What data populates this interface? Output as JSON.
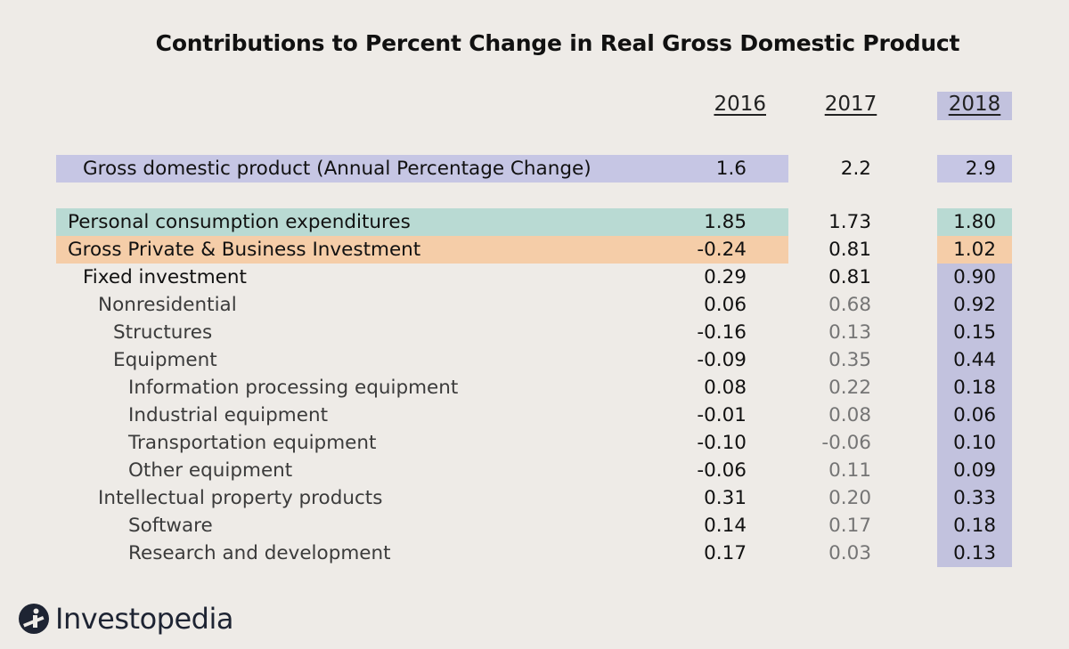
{
  "chart_data": {
    "type": "table",
    "title": "Contributions to Percent Change in Real Gross Domestic Product",
    "columns": [
      "2016",
      "2017",
      "2018"
    ],
    "rows": [
      {
        "label": "Gross domestic product (Annual Percentage Change)",
        "values": [
          "1.6",
          "2.2",
          "2.9"
        ],
        "level": 1,
        "highlight": "#c6c6e4"
      },
      {
        "label": "Personal consumption expenditures",
        "values": [
          "1.85",
          "1.73",
          "1.80"
        ],
        "level": 0,
        "highlight": "#b9dad3"
      },
      {
        "label": "Gross Private & Business Investment",
        "values": [
          "-0.24",
          "0.81",
          "1.02"
        ],
        "level": 0,
        "highlight": "#f5cda8"
      },
      {
        "label": "Fixed investment",
        "values": [
          "0.29",
          "0.81",
          "0.90"
        ],
        "level": 1
      },
      {
        "label": "Nonresidential",
        "values": [
          "0.06",
          "0.68",
          "0.92"
        ],
        "level": 2
      },
      {
        "label": "Structures",
        "values": [
          "-0.16",
          "0.13",
          "0.15"
        ],
        "level": 3
      },
      {
        "label": "Equipment",
        "values": [
          "-0.09",
          "0.35",
          "0.44"
        ],
        "level": 3
      },
      {
        "label": "Information processing equipment",
        "values": [
          "0.08",
          "0.22",
          "0.18"
        ],
        "level": 4
      },
      {
        "label": "Industrial equipment",
        "values": [
          "-0.01",
          "0.08",
          "0.06"
        ],
        "level": 4
      },
      {
        "label": "Transportation equipment",
        "values": [
          "-0.10",
          "-0.06",
          "0.10"
        ],
        "level": 4
      },
      {
        "label": "Other equipment",
        "values": [
          "-0.06",
          "0.11",
          "0.09"
        ],
        "level": 4
      },
      {
        "label": "Intellectual property products",
        "values": [
          "0.31",
          "0.20",
          "0.33"
        ],
        "level": 2
      },
      {
        "label": "Software",
        "values": [
          "0.14",
          "0.17",
          "0.18"
        ],
        "level": 4
      },
      {
        "label": "Research and development",
        "values": [
          "0.17",
          "0.03",
          "0.13"
        ],
        "level": 4
      }
    ],
    "column_highlight": {
      "column": "2018",
      "color": "#c2c2de"
    }
  },
  "brand": {
    "name": "Investopedia",
    "logo_color": "#1e2433"
  }
}
